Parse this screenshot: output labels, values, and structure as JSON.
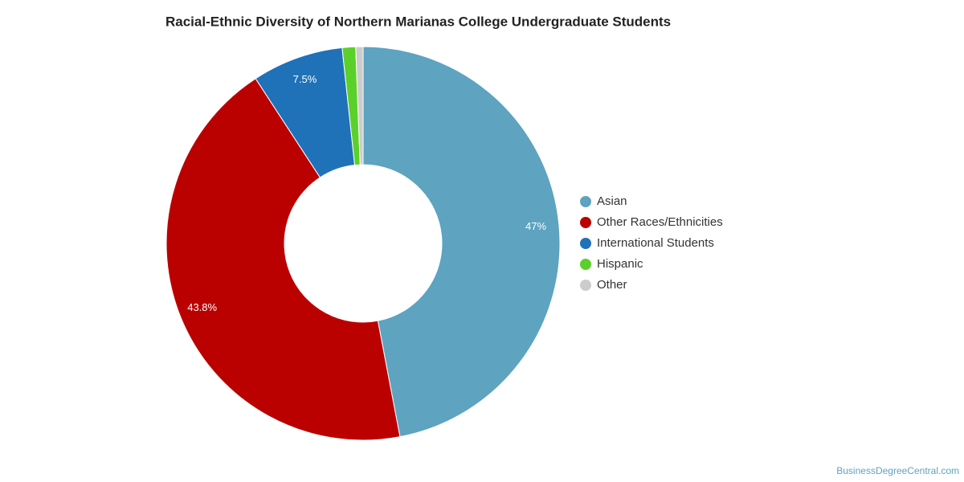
{
  "chart_data": {
    "type": "donut",
    "title": "Racial-Ethnic Diversity of Northern Marianas College Undergraduate Students",
    "categories": [
      "Asian",
      "Other Races/Ethnicities",
      "International Students",
      "Hispanic",
      "Other"
    ],
    "values": [
      47,
      43.8,
      7.5,
      1.1,
      0.6
    ],
    "value_labels": [
      "47%",
      "43.8%",
      "7.5%",
      null,
      null
    ],
    "colors": [
      "#5ea3c0",
      "#bb0000",
      "#1f72b8",
      "#5cd02a",
      "#cccccc"
    ],
    "legend": "right",
    "source": "BusinessDegreeCentral.com"
  }
}
